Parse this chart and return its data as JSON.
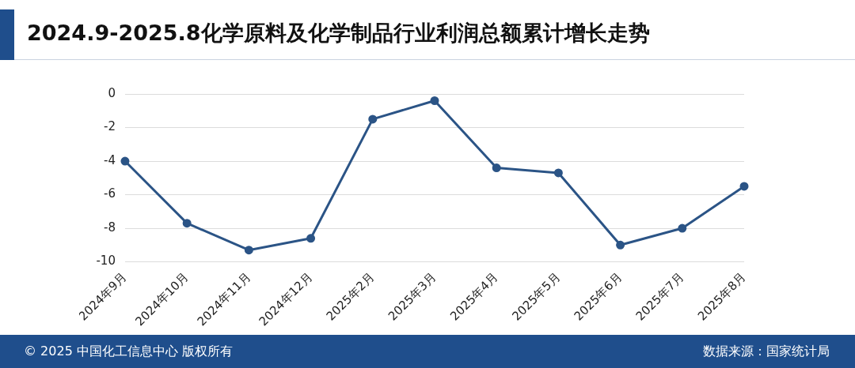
{
  "chart_data": {
    "type": "line",
    "title": "2024.9-2025.8化学原料及化学制品行业利润总额累计增长走势",
    "categories": [
      "2024年9月",
      "2024年10月",
      "2024年11月",
      "2024年12月",
      "2025年2月",
      "2025年3月",
      "2025年4月",
      "2025年5月",
      "2025年6月",
      "2025年7月",
      "2025年8月"
    ],
    "series": [
      {
        "color": "#2b5486",
        "values": [
          -4.0,
          -7.7,
          -9.3,
          -8.6,
          -1.5,
          -0.4,
          -4.4,
          -4.7,
          -9.0,
          -8.0,
          -5.5
        ]
      }
    ],
    "ylim": [
      -10,
      0
    ],
    "yticks": [
      -10,
      -8,
      -6,
      -4,
      -2,
      0
    ],
    "grid": "y",
    "legend": false,
    "marker": "circle",
    "line_style": "solid",
    "annotations": [
      "© 2025 中国化工信息中心 版权所有",
      "数据来源：国家统计局"
    ]
  }
}
